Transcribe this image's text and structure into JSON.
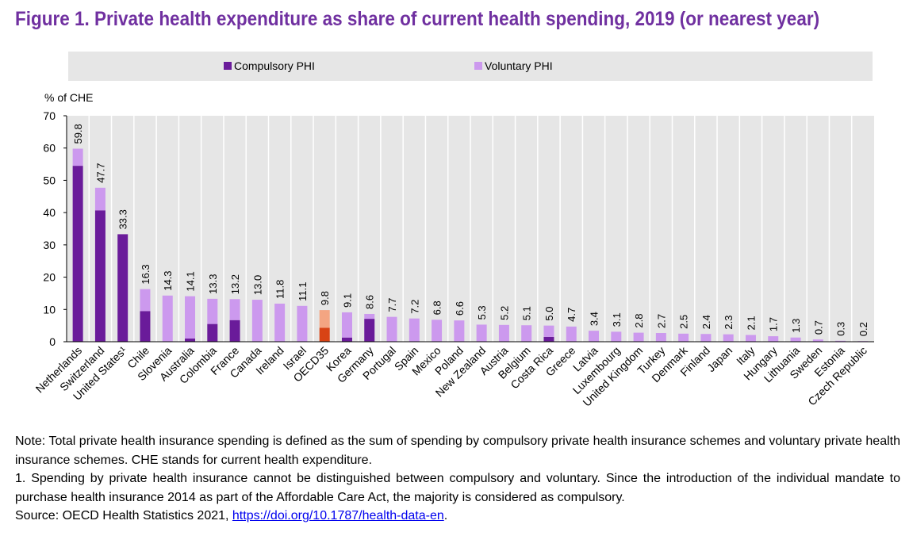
{
  "title": "Figure 1. Private health expenditure as share of current health spending, 2019 (or nearest year)",
  "colors": {
    "compulsory": "#6a1b9a",
    "voluntary": "#cc99ee",
    "oecd_compulsory": "#d84315",
    "oecd_voluntary": "#f4a582",
    "legend_bg": "#e6e6e6",
    "plot_bg": "#e6e6e6",
    "title": "#7030a0"
  },
  "chart_data": {
    "type": "bar",
    "stacked": true,
    "ylabel": "% of CHE",
    "ylim": [
      0,
      70
    ],
    "yticks": [
      0,
      10,
      20,
      30,
      40,
      50,
      60,
      70
    ],
    "grid": "vertical separators",
    "legend_position": "top",
    "categories": [
      "Netherlands",
      "Switzerland",
      "United States¹",
      "Chile",
      "Slovenia",
      "Australia",
      "Colombia",
      "France",
      "Canada",
      "Ireland",
      "Israel",
      "OECD35",
      "Korea",
      "Germany",
      "Portugal",
      "Spain",
      "Mexico",
      "Poland",
      "New Zealand",
      "Austria",
      "Belgium",
      "Costa Rica",
      "Greece",
      "Latvia",
      "Luxembourg",
      "United Kingdom",
      "Turkey",
      "Denmark",
      "Finland",
      "Japan",
      "Italy",
      "Hungary",
      "Lithuania",
      "Sweden",
      "Estonia",
      "Czech Republic"
    ],
    "series": [
      {
        "name": "Compulsory PHI",
        "values": [
          54.5,
          40.7,
          33.3,
          9.5,
          0,
          1.0,
          5.5,
          6.7,
          0,
          0,
          0,
          4.3,
          1.3,
          7.1,
          0,
          0,
          0,
          0,
          0,
          0,
          0,
          1.5,
          0,
          0,
          0,
          0,
          0,
          0,
          0,
          0,
          0,
          0,
          0,
          0,
          0,
          0
        ]
      },
      {
        "name": "Voluntary PHI",
        "values": [
          5.3,
          7.0,
          0,
          6.8,
          14.3,
          13.1,
          7.8,
          6.5,
          13.0,
          11.8,
          11.1,
          5.5,
          7.8,
          1.5,
          7.7,
          7.2,
          6.8,
          6.6,
          5.3,
          5.2,
          5.1,
          3.5,
          4.7,
          3.4,
          3.1,
          2.8,
          2.7,
          2.5,
          2.4,
          2.3,
          2.1,
          1.7,
          1.3,
          0.7,
          0.3,
          0.2
        ]
      }
    ],
    "totals": [
      "59.8",
      "47.7",
      "33.3",
      "16.3",
      "14.3",
      "14.1",
      "13.3",
      "13.2",
      "13.0",
      "11.8",
      "11.1",
      "9.8",
      "9.1",
      "8.6",
      "7.7",
      "7.2",
      "6.8",
      "6.6",
      "5.3",
      "5.2",
      "5.1",
      "5.0",
      "4.7",
      "3.4",
      "3.1",
      "2.8",
      "2.7",
      "2.5",
      "2.4",
      "2.3",
      "2.1",
      "1.7",
      "1.3",
      "0.7",
      "0.3",
      "0.2"
    ],
    "highlight": "OECD35"
  },
  "notes": {
    "note": "Note: Total private health insurance spending is defined as the sum of spending by compulsory private health insurance schemes and voluntary private health insurance schemes. CHE stands for current health expenditure.",
    "footnote": "1. Spending by private health insurance cannot be distinguished between compulsory and voluntary. Since the introduction of the individual mandate to purchase health insurance 2014 as part of the Affordable Care Act, the majority is considered as compulsory.",
    "source_prefix": "Source: OECD Health Statistics 2021, ",
    "source_link": "https://doi.org/10.1787/health-data-en",
    "source_suffix": "."
  }
}
